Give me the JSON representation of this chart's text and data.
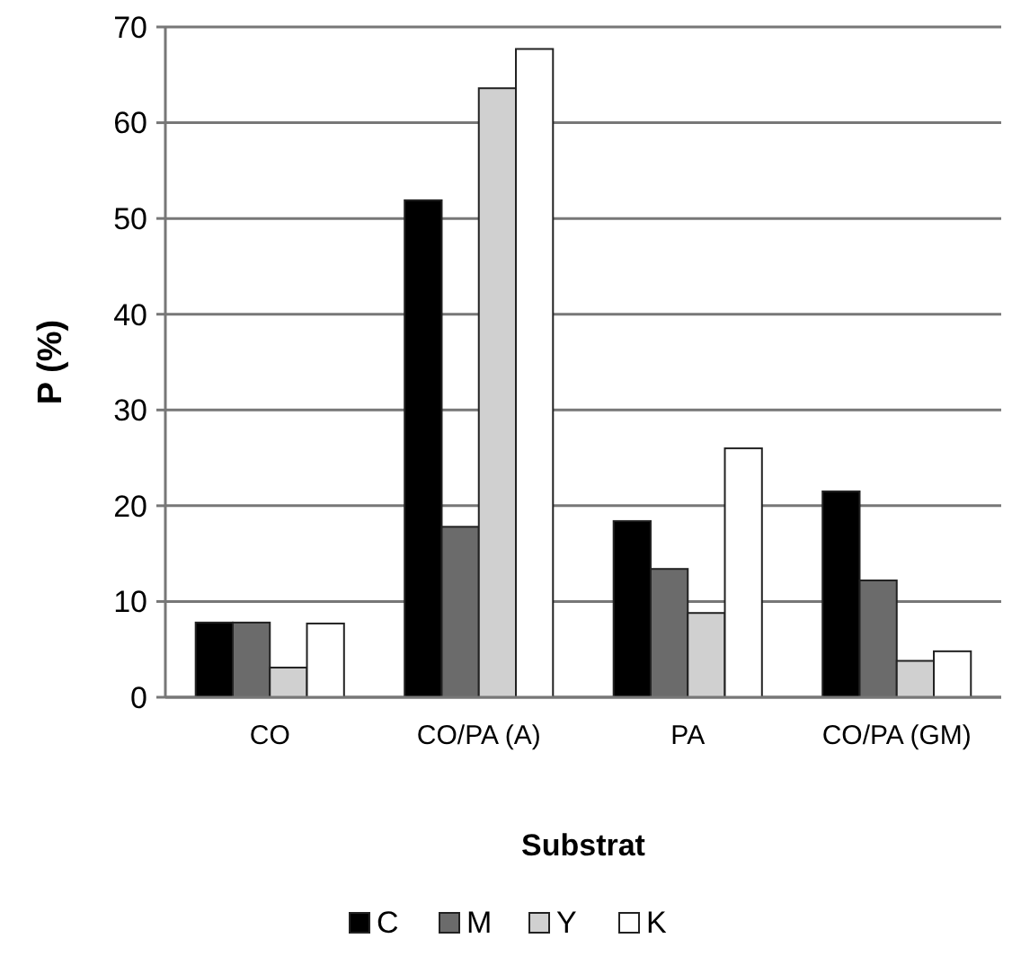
{
  "chart_data": {
    "type": "bar",
    "xlabel": "Substrat",
    "ylabel": "P (%)",
    "categories": [
      "CO",
      "CO/PA (A)",
      "PA",
      "CO/PA (GM)"
    ],
    "series": [
      {
        "name": "C",
        "color": "#000000",
        "values": [
          7.8,
          51.9,
          18.4,
          21.5
        ]
      },
      {
        "name": "M",
        "color": "#6b6b6b",
        "values": [
          7.8,
          17.8,
          13.4,
          12.2
        ]
      },
      {
        "name": "Y",
        "color": "#d0d0d0",
        "values": [
          3.1,
          63.6,
          8.8,
          3.8
        ]
      },
      {
        "name": "K",
        "color": "#ffffff",
        "values": [
          7.7,
          67.7,
          26.0,
          4.8
        ]
      }
    ],
    "ylim": [
      0,
      70
    ],
    "yticks": [
      0,
      10,
      20,
      30,
      40,
      50,
      60,
      70
    ],
    "grid": "y",
    "legend": "bottom"
  }
}
